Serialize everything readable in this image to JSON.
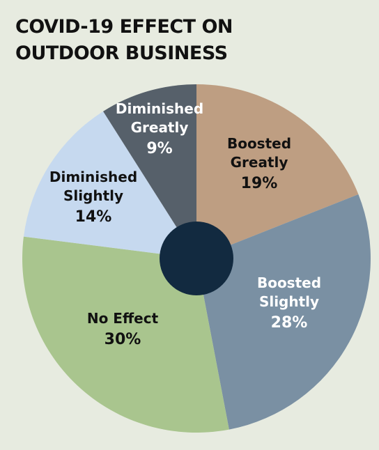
{
  "title": {
    "line1": "COVID-19 EFFECT ON",
    "line2": "OUTDOOR BUSINESS"
  },
  "chart_data": {
    "type": "pie",
    "title": "COVID-19 EFFECT ON OUTDOOR BUSINESS",
    "donut": true,
    "start_direction": "top",
    "clockwise": true,
    "slices": [
      {
        "lines": [
          "Boosted",
          "Greatly"
        ],
        "value": 19,
        "percent_label": "19%",
        "color": "#be9e82",
        "text_color": "#111111"
      },
      {
        "lines": [
          "Boosted",
          "Slightly"
        ],
        "value": 28,
        "percent_label": "28%",
        "color": "#7a90a3",
        "text_color": "#ffffff"
      },
      {
        "lines": [
          "No Effect"
        ],
        "value": 30,
        "percent_label": "30%",
        "color": "#a9c58e",
        "text_color": "#111111"
      },
      {
        "lines": [
          "Diminished",
          "Slightly"
        ],
        "value": 14,
        "percent_label": "14%",
        "color": "#c6d9ef",
        "text_color": "#111111"
      },
      {
        "lines": [
          "Diminished",
          "Greatly"
        ],
        "value": 9,
        "percent_label": "9%",
        "color": "#56606a",
        "text_color": "#ffffff"
      }
    ],
    "center_color": "#122a40",
    "background_color": "#e7ebe0"
  }
}
